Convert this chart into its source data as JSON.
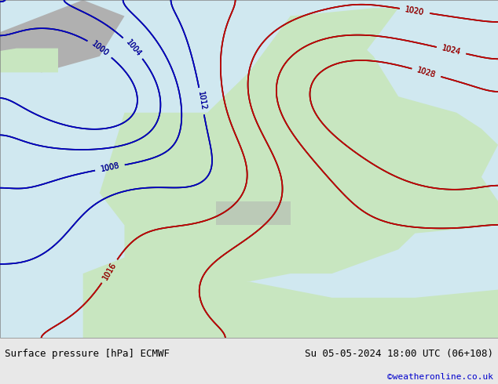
{
  "title_left": "Surface pressure [hPa] ECMWF",
  "title_right": "Su 05-05-2024 18:00 UTC (06+108)",
  "credit": "©weatheronline.co.uk",
  "bg_map_color": "#c8e6c0",
  "bg_sea_color": "#d0e8f0",
  "land_color": "#c8e6c0",
  "sea_color": "#d0e8f0",
  "mountain_color": "#b0b0b0",
  "footer_bg": "#e8e8e8",
  "isobar_black_color": "#000000",
  "isobar_red_color": "#cc0000",
  "isobar_blue_color": "#0000cc",
  "label_fontsize": 8,
  "footer_fontsize": 9,
  "credit_fontsize": 8,
  "credit_color": "#0000cc",
  "figsize": [
    6.34,
    4.9
  ],
  "dpi": 100
}
